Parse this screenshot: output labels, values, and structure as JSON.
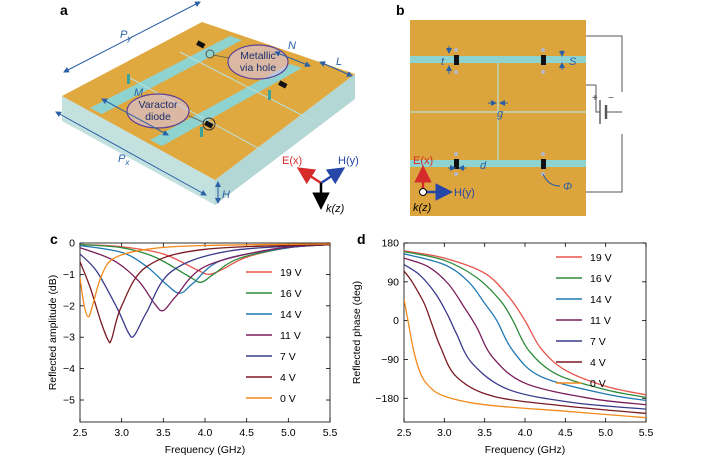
{
  "panels": {
    "a": {
      "label": "a",
      "dims": {
        "py": "P",
        "py_sub": "y",
        "px": "P",
        "px_sub": "x",
        "n": "N",
        "l": "L",
        "m": "M",
        "h": "H"
      },
      "callouts": {
        "via_l1": "Metallic",
        "via_l2": "via hole",
        "var_l1": "Varactor",
        "var_l2": "diode"
      },
      "axes": {
        "e": "E(x)",
        "h": "H(y)",
        "k": "k(z)"
      }
    },
    "b": {
      "label": "b",
      "dims": {
        "t": "t",
        "s": "S",
        "g": "g",
        "d": "d",
        "phi": "Φ"
      },
      "bias": {
        "plus": "+",
        "minus": "−"
      },
      "axes": {
        "e": "E(x)",
        "h": "H(y)",
        "k": "k(z)"
      }
    }
  },
  "chart_data": [
    {
      "panel": "c",
      "type": "line",
      "xlabel": "Frequency (GHz)",
      "ylabel": "Reflected amplitude (dB)",
      "xlim": [
        2.5,
        5.5
      ],
      "ylim": [
        -5.7,
        0
      ],
      "xticks": [
        "2.5",
        "3.0",
        "3.5",
        "4.0",
        "4.5",
        "5.0",
        "5.5"
      ],
      "yticks": [
        "0",
        "−1",
        "−2",
        "−3",
        "−4",
        "−5"
      ],
      "ytick_values": [
        0,
        -1,
        -2,
        -3,
        -4,
        -5
      ],
      "xtick_values": [
        2.5,
        3.0,
        3.5,
        4.0,
        4.5,
        5.0,
        5.5
      ],
      "legend_position": "center-right",
      "series": [
        {
          "name": "19 V",
          "color": "#e8534a",
          "x": [
            2.5,
            3.0,
            3.5,
            3.9,
            4.05,
            4.2,
            4.5,
            5.0,
            5.5
          ],
          "y": [
            -0.05,
            -0.12,
            -0.35,
            -0.85,
            -1.0,
            -0.85,
            -0.45,
            -0.15,
            -0.05
          ]
        },
        {
          "name": "16 V",
          "color": "#2e8b3a",
          "x": [
            2.5,
            3.0,
            3.4,
            3.8,
            3.95,
            4.1,
            4.4,
            5.0,
            5.5
          ],
          "y": [
            -0.05,
            -0.15,
            -0.45,
            -1.05,
            -1.25,
            -1.0,
            -0.5,
            -0.15,
            -0.05
          ]
        },
        {
          "name": "14 V",
          "color": "#1f78b4",
          "x": [
            2.5,
            3.0,
            3.3,
            3.55,
            3.7,
            3.85,
            4.2,
            5.0,
            5.5
          ],
          "y": [
            -0.08,
            -0.3,
            -0.75,
            -1.35,
            -1.6,
            -1.3,
            -0.55,
            -0.15,
            -0.05
          ]
        },
        {
          "name": "11 V",
          "color": "#7a1f5c",
          "x": [
            2.5,
            2.9,
            3.2,
            3.4,
            3.5,
            3.65,
            4.0,
            4.8,
            5.5
          ],
          "y": [
            -0.15,
            -0.55,
            -1.2,
            -1.95,
            -2.15,
            -1.7,
            -0.75,
            -0.2,
            -0.05
          ]
        },
        {
          "name": "7 V",
          "color": "#3a3a8c",
          "x": [
            2.5,
            2.7,
            2.95,
            3.08,
            3.15,
            3.3,
            3.6,
            4.3,
            5.5
          ],
          "y": [
            -0.35,
            -0.9,
            -2.1,
            -2.85,
            -2.95,
            -2.2,
            -0.9,
            -0.25,
            -0.05
          ]
        },
        {
          "name": "4 V",
          "color": "#7a1a22",
          "x": [
            2.5,
            2.62,
            2.75,
            2.84,
            2.88,
            3.0,
            3.3,
            4.0,
            5.5
          ],
          "y": [
            -0.6,
            -1.4,
            -2.5,
            -3.1,
            -3.05,
            -2.0,
            -0.75,
            -0.2,
            -0.05
          ]
        },
        {
          "name": "0 V",
          "color": "#f28a1c",
          "x": [
            2.5,
            2.55,
            2.6,
            2.65,
            2.75,
            2.9,
            3.3,
            4.0,
            5.5
          ],
          "y": [
            -1.1,
            -2.0,
            -2.35,
            -2.0,
            -1.1,
            -0.5,
            -0.2,
            -0.08,
            -0.03
          ]
        }
      ]
    },
    {
      "panel": "d",
      "type": "line",
      "xlabel": "Frequency (GHz)",
      "ylabel": "Reflected phase (deg)",
      "xlim": [
        2.5,
        5.5
      ],
      "ylim": [
        -235,
        180
      ],
      "xticks": [
        "2.5",
        "3.0",
        "3.5",
        "4.0",
        "4.5",
        "5.0",
        "5.5"
      ],
      "yticks": [
        "180",
        "90",
        "0",
        "−90",
        "−180"
      ],
      "ytick_values": [
        180,
        90,
        0,
        -90,
        -180
      ],
      "xtick_values": [
        2.5,
        3.0,
        3.5,
        4.0,
        4.5,
        5.0,
        5.5
      ],
      "legend_position": "upper-right",
      "series": [
        {
          "name": "19 V",
          "color": "#e8534a",
          "x": [
            2.5,
            3.0,
            3.5,
            3.8,
            4.0,
            4.2,
            4.5,
            5.0,
            5.5
          ],
          "y": [
            162,
            145,
            110,
            55,
            0,
            -65,
            -115,
            -152,
            -172
          ]
        },
        {
          "name": "16 V",
          "color": "#2e8b3a",
          "x": [
            2.5,
            3.0,
            3.4,
            3.7,
            3.85,
            4.05,
            4.4,
            5.0,
            5.5
          ],
          "y": [
            160,
            140,
            100,
            45,
            0,
            -70,
            -125,
            -160,
            -178
          ]
        },
        {
          "name": "14 V",
          "color": "#1f78b4",
          "x": [
            2.5,
            3.0,
            3.3,
            3.5,
            3.65,
            3.85,
            4.2,
            5.0,
            5.5
          ],
          "y": [
            155,
            130,
            90,
            40,
            0,
            -70,
            -130,
            -170,
            -185
          ]
        },
        {
          "name": "11 V",
          "color": "#7a1f5c",
          "x": [
            2.5,
            2.8,
            3.05,
            3.25,
            3.4,
            3.6,
            4.0,
            4.8,
            5.5
          ],
          "y": [
            145,
            125,
            85,
            30,
            -15,
            -85,
            -145,
            -180,
            -195
          ]
        },
        {
          "name": "7 V",
          "color": "#3a3a8c",
          "x": [
            2.5,
            2.7,
            2.9,
            3.05,
            3.15,
            3.35,
            3.8,
            4.6,
            5.5
          ],
          "y": [
            130,
            105,
            60,
            10,
            -30,
            -100,
            -160,
            -190,
            -205
          ]
        },
        {
          "name": "4 V",
          "color": "#7a1a22",
          "x": [
            2.5,
            2.6,
            2.75,
            2.85,
            2.95,
            3.15,
            3.6,
            4.5,
            5.5
          ],
          "y": [
            115,
            90,
            40,
            -10,
            -60,
            -130,
            -175,
            -198,
            -215
          ]
        },
        {
          "name": "0 V",
          "color": "#f28a1c",
          "x": [
            2.5,
            2.55,
            2.62,
            2.7,
            2.8,
            3.0,
            3.5,
            4.5,
            5.5
          ],
          "y": [
            50,
            0,
            -70,
            -120,
            -150,
            -175,
            -195,
            -210,
            -225
          ]
        }
      ]
    }
  ]
}
